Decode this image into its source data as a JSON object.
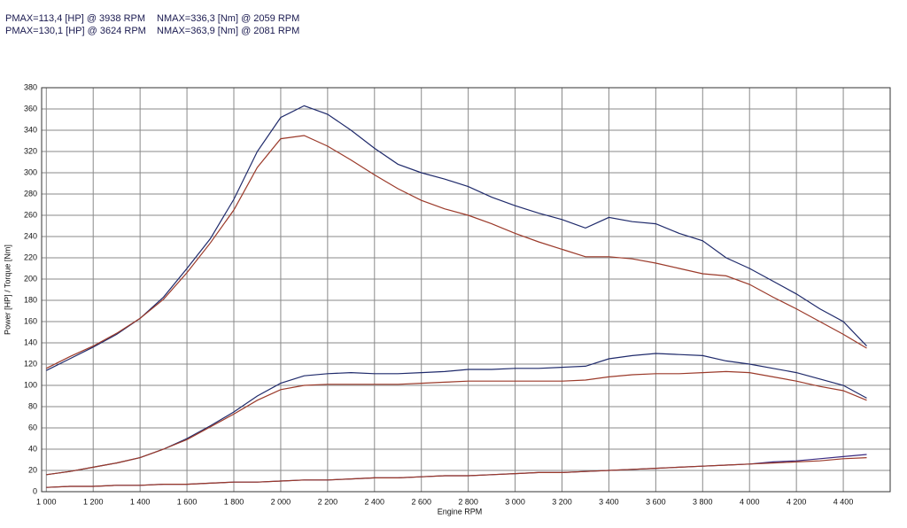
{
  "chart_data": {
    "type": "line",
    "annotations": [
      "PMAX=113,4 [HP] @ 3938 RPM",
      "NMAX=336,3 [Nm] @ 2059 RPM",
      "PMAX=130,1 [HP] @ 3624 RPM",
      "NMAX=363,9 [Nm] @ 2081 RPM"
    ],
    "x_label": "Engine RPM",
    "y_label": "Power [HP] / Torque [Nm]",
    "xlim": [
      980,
      4600
    ],
    "ylim": [
      0,
      380
    ],
    "xticks": [
      {
        "value": 1000,
        "label": "1 000"
      },
      {
        "value": 1200,
        "label": "1 200"
      },
      {
        "value": 1400,
        "label": "1 400"
      },
      {
        "value": 1600,
        "label": "1 600"
      },
      {
        "value": 1800,
        "label": "1 800"
      },
      {
        "value": 2000,
        "label": "2 000"
      },
      {
        "value": 2200,
        "label": "2 200"
      },
      {
        "value": 2400,
        "label": "2 400"
      },
      {
        "value": 2600,
        "label": "2 600"
      },
      {
        "value": 2800,
        "label": "2 800"
      },
      {
        "value": 3000,
        "label": "3 000"
      },
      {
        "value": 3200,
        "label": "3 200"
      },
      {
        "value": 3400,
        "label": "3 400"
      },
      {
        "value": 3600,
        "label": "3 600"
      },
      {
        "value": 3800,
        "label": "3 800"
      },
      {
        "value": 4000,
        "label": "4 000"
      },
      {
        "value": 4200,
        "label": "4 200"
      },
      {
        "value": 4400,
        "label": "4 400"
      }
    ],
    "yticks": [
      0,
      20,
      40,
      60,
      80,
      100,
      120,
      140,
      160,
      180,
      200,
      220,
      240,
      260,
      280,
      300,
      320,
      340,
      360,
      380
    ],
    "grid": true,
    "x": [
      1000,
      1100,
      1200,
      1300,
      1400,
      1500,
      1600,
      1700,
      1800,
      1900,
      2000,
      2100,
      2200,
      2300,
      2400,
      2500,
      2600,
      2700,
      2800,
      2900,
      3000,
      3100,
      3200,
      3300,
      3400,
      3500,
      3600,
      3700,
      3800,
      3900,
      4000,
      4100,
      4200,
      4300,
      4400,
      4500
    ],
    "series": [
      {
        "color": "#1f2a6b",
        "values": [
          114,
          125,
          136,
          148,
          163,
          183,
          210,
          238,
          275,
          320,
          352,
          363,
          355,
          340,
          323,
          308,
          300,
          294,
          287,
          277,
          269,
          262,
          256,
          248,
          258,
          254,
          252,
          243,
          236,
          220,
          210,
          198,
          186,
          172,
          160,
          137
        ]
      },
      {
        "color": "#9b3a2a",
        "values": [
          116,
          127,
          137,
          149,
          163,
          181,
          206,
          234,
          265,
          305,
          332,
          335,
          325,
          312,
          298,
          285,
          274,
          266,
          260,
          252,
          243,
          235,
          228,
          221,
          221,
          219,
          215,
          210,
          205,
          203,
          195,
          183,
          172,
          160,
          148,
          135
        ]
      },
      {
        "color": "#1f2a6b",
        "values": [
          16,
          19,
          23,
          27,
          32,
          40,
          50,
          62,
          75,
          90,
          102,
          109,
          111,
          112,
          111,
          111,
          112,
          113,
          115,
          115,
          116,
          116,
          117,
          118,
          125,
          128,
          130,
          129,
          128,
          123,
          120,
          116,
          112,
          106,
          100,
          88
        ]
      },
      {
        "color": "#9b3a2a",
        "values": [
          16,
          19,
          23,
          27,
          32,
          40,
          49,
          61,
          73,
          86,
          96,
          100,
          101,
          101,
          101,
          101,
          102,
          103,
          104,
          104,
          104,
          104,
          104,
          105,
          108,
          110,
          111,
          111,
          112,
          113,
          112,
          108,
          104,
          99,
          95,
          86
        ]
      },
      {
        "color": "#3a2a80",
        "values": [
          4,
          5,
          5,
          6,
          6,
          7,
          7,
          8,
          9,
          9,
          10,
          11,
          11,
          12,
          13,
          13,
          14,
          15,
          15,
          16,
          17,
          18,
          18,
          19,
          20,
          21,
          22,
          23,
          24,
          25,
          26,
          28,
          29,
          31,
          33,
          35
        ]
      },
      {
        "color": "#9b3a2a",
        "values": [
          4,
          5,
          5,
          6,
          6,
          7,
          7,
          8,
          9,
          9,
          10,
          11,
          11,
          12,
          13,
          13,
          14,
          15,
          15,
          16,
          17,
          18,
          18,
          19,
          20,
          21,
          22,
          23,
          24,
          25,
          26,
          27,
          28,
          29,
          31,
          32
        ]
      }
    ]
  }
}
